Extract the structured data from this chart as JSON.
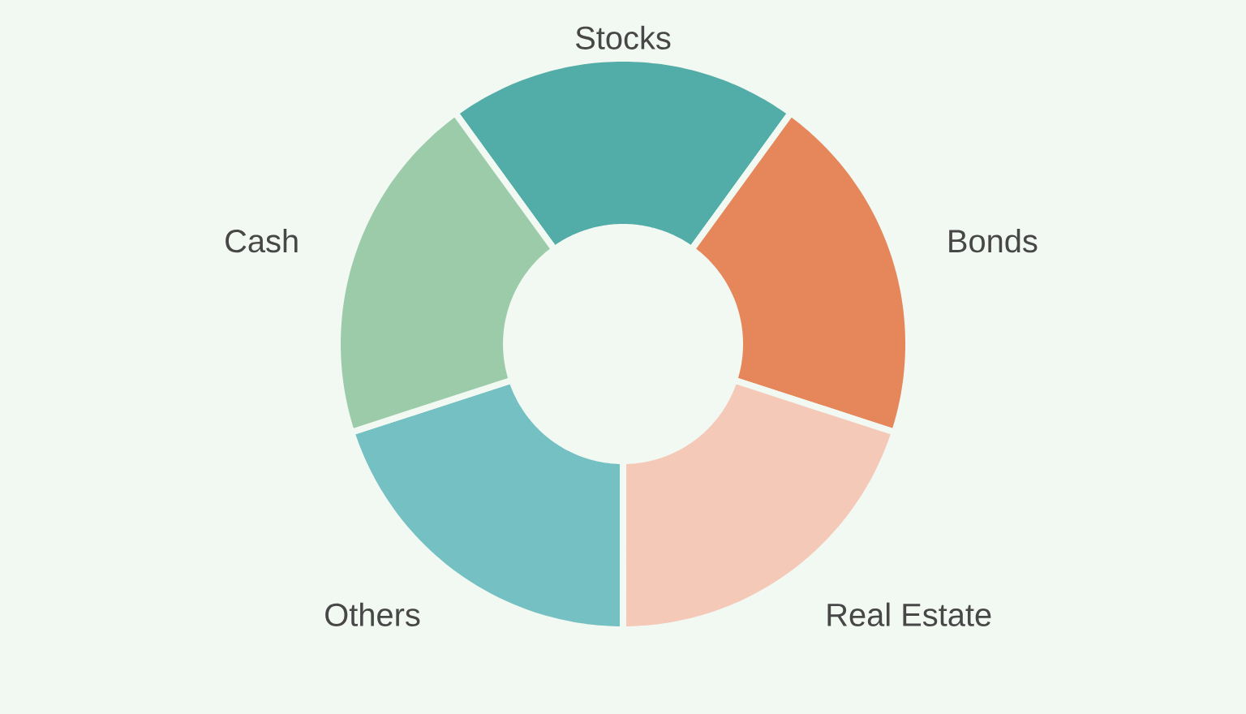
{
  "chart_data": {
    "type": "donut",
    "categories": [
      "Stocks",
      "Bonds",
      "Real Estate",
      "Others",
      "Cash"
    ],
    "values": [
      20,
      20,
      20,
      20,
      20
    ],
    "colors": [
      "#52aca8",
      "#e5875a",
      "#f5c9b8",
      "#74c0c2",
      "#9bcba8"
    ]
  }
}
